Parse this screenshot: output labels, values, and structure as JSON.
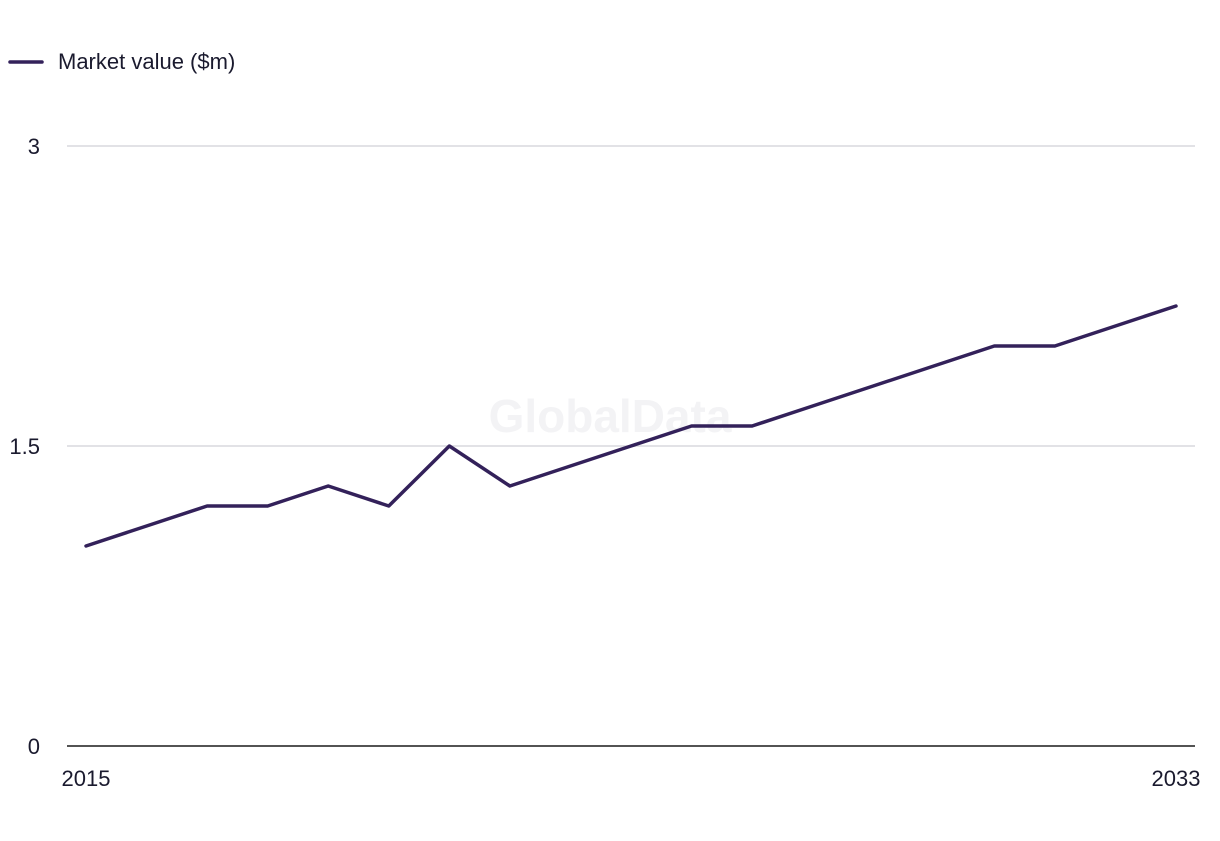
{
  "colors": {
    "series_line": "#33215a",
    "gridline": "#d9d9de",
    "axis_line": "#1a1a1a",
    "text": "#1a1a2e",
    "watermark": "#f3f3f5"
  },
  "watermark": "GlobalData",
  "chart_data": {
    "type": "line",
    "title": "",
    "xlabel": "",
    "ylabel": "",
    "legend": {
      "placement": "top-left",
      "entries": [
        "Market value ($m)"
      ]
    },
    "grid": true,
    "x_ticks": [
      "2015",
      "2033"
    ],
    "y_ticks": [
      "0",
      "1.5",
      "3"
    ],
    "ylim": [
      0,
      3
    ],
    "xlim": [
      2015,
      2033
    ],
    "x": [
      2015,
      2016,
      2017,
      2018,
      2019,
      2020,
      2021,
      2022,
      2023,
      2024,
      2025,
      2026,
      2027,
      2028,
      2029,
      2030,
      2031,
      2032,
      2033
    ],
    "series": [
      {
        "name": "Market value ($m)",
        "values": [
          1.0,
          1.1,
          1.2,
          1.2,
          1.3,
          1.2,
          1.5,
          1.3,
          1.4,
          1.5,
          1.6,
          1.6,
          1.7,
          1.8,
          1.9,
          2.0,
          2.0,
          2.1,
          2.2
        ]
      }
    ]
  }
}
